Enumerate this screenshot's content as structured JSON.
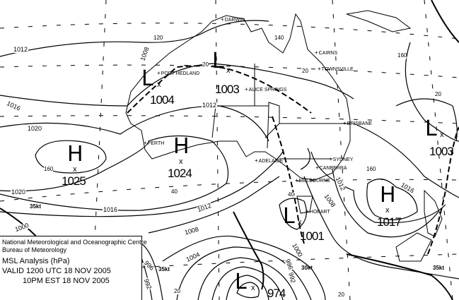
{
  "legend": {
    "org_line1": "National Meteorological and Oceanographic Centre",
    "org_line2": "Bureau of Meteorology",
    "title": "MSL Analysis (hPa)",
    "valid_utc": "VALID 1200 UTC 18 NOV 2005",
    "valid_local": "10PM EST 18 NOV 2005"
  },
  "pressure_systems": [
    {
      "type": "L",
      "value": "1004"
    },
    {
      "type": "L",
      "value": "1003"
    },
    {
      "type": "H",
      "value": "1024"
    },
    {
      "type": "H",
      "value": "1025"
    },
    {
      "type": "L",
      "value": "1003"
    },
    {
      "type": "H",
      "value": "1017"
    },
    {
      "type": "L",
      "value": "1001"
    },
    {
      "type": "L",
      "value": "974"
    }
  ],
  "center_marker": "x",
  "cities": [
    "DARWIN",
    "PORT HEDLAND",
    "ALICE SPRINGS",
    "CAIRNS",
    "TOWNSVILLE",
    "BRISBANE",
    "PERTH",
    "ADELAIDE",
    "SYDNEY",
    "CANBERRA",
    "MELBOURNE",
    "HOBART"
  ],
  "isobar_labels": [
    "1012",
    "1008",
    "1016",
    "1012",
    "1020",
    "1020",
    "1016",
    "1012",
    "1008",
    "1004",
    "1000",
    "996",
    "992",
    "1008",
    "1012",
    "1016",
    "1000",
    "996",
    "992"
  ],
  "grid_labels": [
    "120",
    "140",
    "160",
    "20",
    "20",
    "40",
    "40",
    "160",
    "20",
    "20",
    "160",
    "20"
  ],
  "wind_labels": [
    "35kt",
    "35kt",
    "30kt",
    "35kt"
  ]
}
